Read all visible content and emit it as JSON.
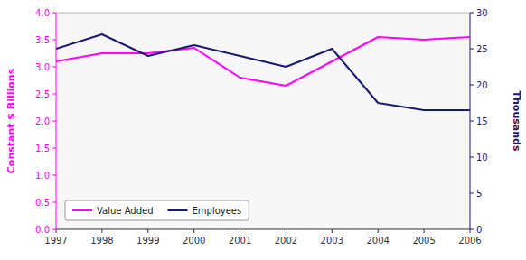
{
  "chart_data": {
    "type": "line",
    "x": [
      1997,
      1998,
      1999,
      2000,
      2001,
      2002,
      2003,
      2004,
      2005,
      2006
    ],
    "xlim": [
      1997,
      2006
    ],
    "xticks": [
      1997,
      1998,
      1999,
      2000,
      2001,
      2002,
      2003,
      2004,
      2005,
      2006
    ],
    "ylabel": "Constant $ Billions",
    "y2label": "Thousands",
    "ylim": [
      0.0,
      4.0
    ],
    "yticks": [
      {
        "value": 0.0,
        "label": "0.0"
      },
      0.5,
      {
        "value": 1.0,
        "label": "1.0"
      },
      1.5,
      {
        "value": 2.0,
        "label": "2.0"
      },
      2.5,
      {
        "value": 3.0,
        "label": "3.0"
      },
      3.5,
      {
        "value": 4.0,
        "label": "4.0"
      }
    ],
    "y2lim": [
      0,
      30
    ],
    "y2ticks": [
      0,
      5,
      10,
      15,
      20,
      25,
      30
    ],
    "grid": false,
    "legend": "lower left",
    "series": [
      {
        "name": "Value Added",
        "color": "#FF00FF",
        "values": [
          3.1,
          3.25,
          3.25,
          3.35,
          2.8,
          2.65,
          3.1,
          3.55,
          3.5,
          3.55
        ]
      },
      {
        "name": "Employees",
        "color": "#191970",
        "axis": "y2",
        "values": [
          25.0,
          27.0,
          24.0,
          25.5,
          24.0,
          22.5,
          25.0,
          17.5,
          16.5,
          16.5
        ]
      }
    ]
  }
}
